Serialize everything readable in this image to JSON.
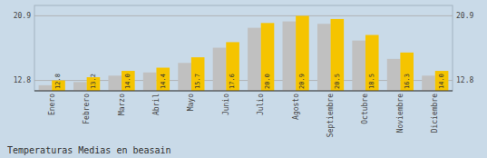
{
  "chart_data": {
    "type": "bar",
    "title": "Temperaturas Medias en beasain",
    "categories": [
      "Enero",
      "Febrero",
      "Marzo",
      "Abril",
      "Mayo",
      "Junio",
      "Julio",
      "Agosto",
      "Septiembre",
      "Octubre",
      "Noviembre",
      "Diciembre"
    ],
    "series": [
      {
        "color": "#C0C0C0",
        "values": [
          12.2,
          12.6,
          13.4,
          13.8,
          15.0,
          16.9,
          19.4,
          20.2,
          19.9,
          17.8,
          15.5,
          13.4
        ]
      },
      {
        "color": "#F5C400",
        "values": [
          12.8,
          13.2,
          14.0,
          14.4,
          15.7,
          17.6,
          20.0,
          20.9,
          20.5,
          18.5,
          16.3,
          14.0
        ],
        "data_labels": true,
        "value_labels": [
          "12.8",
          "13.2",
          "14.0",
          "14.4",
          "15.7",
          "17.6",
          "20.0",
          "20.9",
          "20.5",
          "18.5",
          "16.3",
          "14.0"
        ]
      }
    ],
    "ylim": [
      11.5,
      22.2
    ],
    "yticks": [
      12.8,
      20.9
    ],
    "grid": true
  }
}
